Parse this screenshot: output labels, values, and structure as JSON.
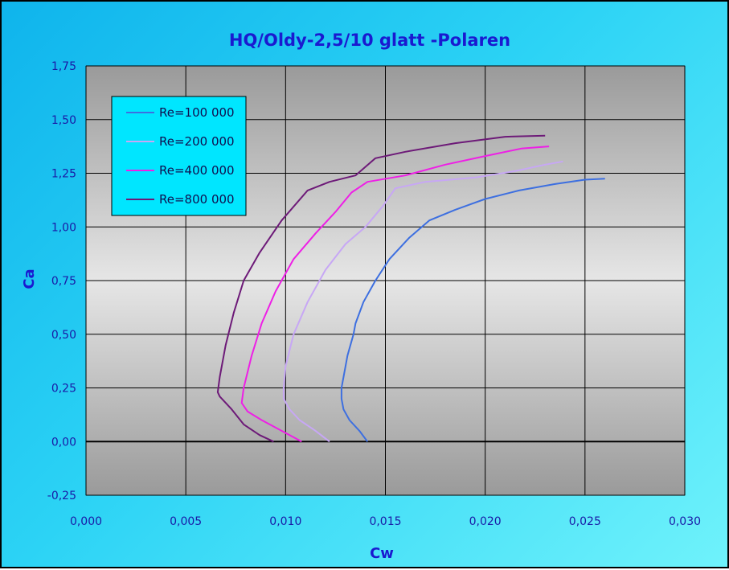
{
  "chart_data": {
    "type": "line",
    "title": "HQ/Oldy-2,5/10 glatt -Polaren",
    "xlabel": "Cw",
    "ylabel": "Ca",
    "xlim": [
      0,
      0.03
    ],
    "ylim": [
      -0.25,
      1.75
    ],
    "x_ticks": [
      {
        "value": 0,
        "label": "0,000"
      },
      {
        "value": 0.005,
        "label": "0,005"
      },
      {
        "value": 0.01,
        "label": "0,010"
      },
      {
        "value": 0.015,
        "label": "0,015"
      },
      {
        "value": 0.02,
        "label": "0,020"
      },
      {
        "value": 0.025,
        "label": "0,025"
      },
      {
        "value": 0.03,
        "label": "0,030"
      }
    ],
    "y_ticks": [
      {
        "value": -0.25,
        "label": "-0,25"
      },
      {
        "value": 0,
        "label": "0,00"
      },
      {
        "value": 0.25,
        "label": "0,25"
      },
      {
        "value": 0.5,
        "label": "0,50"
      },
      {
        "value": 0.75,
        "label": "0,75"
      },
      {
        "value": 1.0,
        "label": "1,00"
      },
      {
        "value": 1.25,
        "label": "1,25"
      },
      {
        "value": 1.5,
        "label": "1,50"
      },
      {
        "value": 1.75,
        "label": "1,75"
      }
    ],
    "grid": true,
    "legend_position": "top-left",
    "series": [
      {
        "name": "Re=100 000",
        "color": "#3d6fe0",
        "points": [
          [
            0.0141,
            0.0
          ],
          [
            0.0137,
            0.05
          ],
          [
            0.0132,
            0.1
          ],
          [
            0.0129,
            0.15
          ],
          [
            0.0128,
            0.2
          ],
          [
            0.0128,
            0.25
          ],
          [
            0.0129,
            0.3
          ],
          [
            0.0131,
            0.4
          ],
          [
            0.0134,
            0.5
          ],
          [
            0.0135,
            0.55
          ],
          [
            0.0139,
            0.65
          ],
          [
            0.0145,
            0.75
          ],
          [
            0.0152,
            0.85
          ],
          [
            0.0162,
            0.95
          ],
          [
            0.0172,
            1.03
          ],
          [
            0.0185,
            1.08
          ],
          [
            0.02,
            1.13
          ],
          [
            0.0217,
            1.17
          ],
          [
            0.0235,
            1.2
          ],
          [
            0.025,
            1.22
          ],
          [
            0.026,
            1.225
          ]
        ]
      },
      {
        "name": "Re=200 000",
        "color": "#c7a7f5",
        "points": [
          [
            0.0122,
            0.0
          ],
          [
            0.0115,
            0.05
          ],
          [
            0.0107,
            0.1
          ],
          [
            0.0102,
            0.15
          ],
          [
            0.0099,
            0.2
          ],
          [
            0.0099,
            0.25
          ],
          [
            0.01,
            0.35
          ],
          [
            0.0104,
            0.5
          ],
          [
            0.0111,
            0.65
          ],
          [
            0.012,
            0.8
          ],
          [
            0.013,
            0.92
          ],
          [
            0.014,
            1.0
          ],
          [
            0.0149,
            1.1
          ],
          [
            0.0155,
            1.18
          ],
          [
            0.017,
            1.21
          ],
          [
            0.0195,
            1.23
          ],
          [
            0.0215,
            1.26
          ],
          [
            0.023,
            1.29
          ],
          [
            0.0239,
            1.305
          ]
        ]
      },
      {
        "name": "Re=400 000",
        "color": "#ee1fe6",
        "points": [
          [
            0.0108,
            0.0
          ],
          [
            0.0098,
            0.05
          ],
          [
            0.0088,
            0.1
          ],
          [
            0.0081,
            0.14
          ],
          [
            0.0078,
            0.18
          ],
          [
            0.0079,
            0.25
          ],
          [
            0.0083,
            0.4
          ],
          [
            0.0088,
            0.55
          ],
          [
            0.0095,
            0.7
          ],
          [
            0.0104,
            0.85
          ],
          [
            0.0115,
            0.97
          ],
          [
            0.0125,
            1.07
          ],
          [
            0.0133,
            1.16
          ],
          [
            0.0141,
            1.21
          ],
          [
            0.016,
            1.24
          ],
          [
            0.018,
            1.29
          ],
          [
            0.02,
            1.33
          ],
          [
            0.0218,
            1.365
          ],
          [
            0.0232,
            1.375
          ]
        ]
      },
      {
        "name": "Re=800 000",
        "color": "#6d1a78",
        "points": [
          [
            0.0094,
            0.0
          ],
          [
            0.0087,
            0.03
          ],
          [
            0.0079,
            0.08
          ],
          [
            0.0073,
            0.15
          ],
          [
            0.0067,
            0.21
          ],
          [
            0.0066,
            0.23
          ],
          [
            0.0067,
            0.3
          ],
          [
            0.007,
            0.45
          ],
          [
            0.0074,
            0.6
          ],
          [
            0.0079,
            0.75
          ],
          [
            0.0087,
            0.88
          ],
          [
            0.0098,
            1.03
          ],
          [
            0.0111,
            1.17
          ],
          [
            0.0122,
            1.21
          ],
          [
            0.0135,
            1.24
          ],
          [
            0.0145,
            1.32
          ],
          [
            0.016,
            1.35
          ],
          [
            0.0185,
            1.39
          ],
          [
            0.021,
            1.42
          ],
          [
            0.023,
            1.425
          ]
        ]
      }
    ]
  }
}
